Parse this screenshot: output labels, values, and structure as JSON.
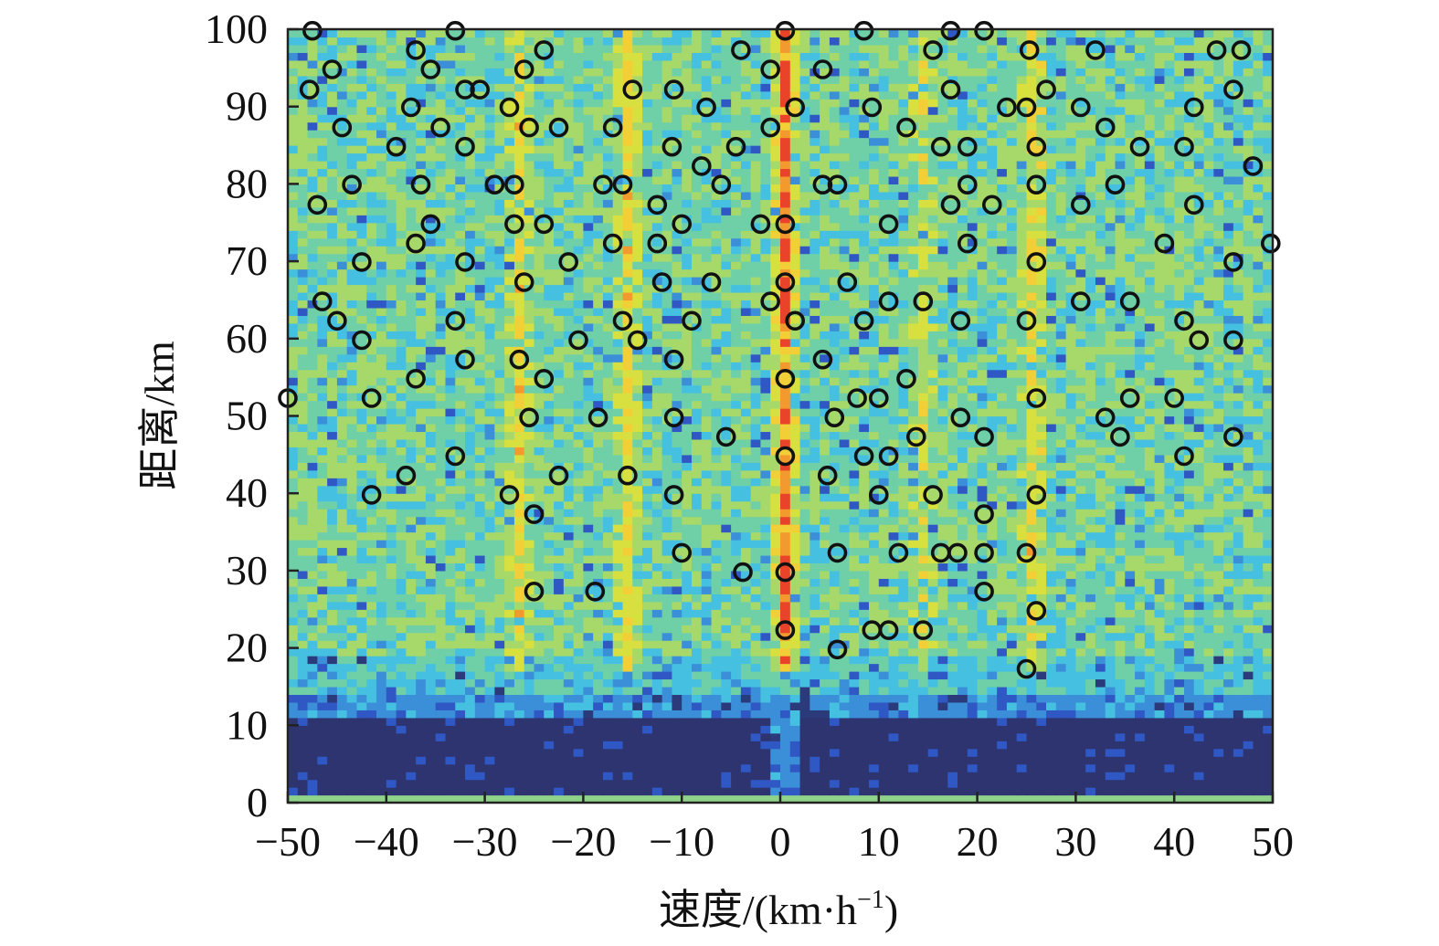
{
  "chart_data": {
    "type": "heatmap",
    "title": "",
    "xlabel": "速度/(km·h",
    "xlabel_sup": "−1",
    "xlabel_close": ")",
    "ylabel": "距离/km",
    "xlim": [
      -50,
      50
    ],
    "ylim": [
      0,
      100
    ],
    "x_ticks": [
      -50,
      -40,
      -30,
      -20,
      -10,
      0,
      10,
      20,
      30,
      40,
      50
    ],
    "x_tick_labels": [
      "−50",
      "−40",
      "−30",
      "−20",
      "−10",
      "0",
      "10",
      "20",
      "30",
      "40",
      "50"
    ],
    "y_ticks": [
      0,
      10,
      20,
      30,
      40,
      50,
      60,
      70,
      80,
      90,
      100
    ],
    "y_tick_labels": [
      "0",
      "10",
      "20",
      "30",
      "40",
      "50",
      "60",
      "70",
      "80",
      "90",
      "100"
    ],
    "grid": false,
    "colormap": [
      "#2b3a7a",
      "#2f58c4",
      "#3b8fd8",
      "#45c0e0",
      "#6fd0a8",
      "#a6d86a",
      "#d8e040",
      "#f2cf36",
      "#f39a2e",
      "#e9432a"
    ],
    "background_band": {
      "range_km": [
        1,
        11
      ],
      "color": "#2e3470"
    },
    "bright_ridges": [
      {
        "velocity": 0.5,
        "intensity": "high"
      },
      {
        "velocity": -26.5,
        "intensity": "medium"
      },
      {
        "velocity": 25.8,
        "intensity": "medium"
      },
      {
        "velocity": -15.5,
        "intensity": "medium"
      },
      {
        "velocity": 14.5,
        "intensity": "low"
      }
    ],
    "detections": [
      [
        -47.5,
        99.8
      ],
      [
        -33.0,
        99.8
      ],
      [
        0.5,
        99.8
      ],
      [
        8.5,
        99.8
      ],
      [
        17.3,
        99.8
      ],
      [
        20.7,
        99.8
      ],
      [
        -37.0,
        97.3
      ],
      [
        -24.0,
        97.3
      ],
      [
        -4.0,
        97.3
      ],
      [
        15.5,
        97.3
      ],
      [
        25.3,
        97.3
      ],
      [
        32.0,
        97.3
      ],
      [
        44.3,
        97.3
      ],
      [
        46.8,
        97.3
      ],
      [
        -45.5,
        94.8
      ],
      [
        -35.5,
        94.8
      ],
      [
        -26.0,
        94.8
      ],
      [
        -1.0,
        94.8
      ],
      [
        4.3,
        94.8
      ],
      [
        -47.8,
        92.2
      ],
      [
        -32.0,
        92.2
      ],
      [
        -30.5,
        92.2
      ],
      [
        -15.0,
        92.2
      ],
      [
        -10.8,
        92.2
      ],
      [
        17.3,
        92.2
      ],
      [
        27.0,
        92.2
      ],
      [
        46.0,
        92.2
      ],
      [
        -37.5,
        89.9
      ],
      [
        -27.5,
        89.9
      ],
      [
        1.5,
        89.9
      ],
      [
        -7.5,
        89.9
      ],
      [
        9.3,
        89.9
      ],
      [
        23.0,
        89.9
      ],
      [
        25.0,
        89.9
      ],
      [
        30.5,
        89.9
      ],
      [
        42.0,
        89.9
      ],
      [
        -44.5,
        87.3
      ],
      [
        -34.5,
        87.3
      ],
      [
        -25.5,
        87.3
      ],
      [
        -22.5,
        87.3
      ],
      [
        -17.0,
        87.3
      ],
      [
        -1.0,
        87.3
      ],
      [
        12.8,
        87.3
      ],
      [
        33.0,
        87.3
      ],
      [
        -39.0,
        84.8
      ],
      [
        -32.0,
        84.8
      ],
      [
        -11.0,
        84.8
      ],
      [
        -4.5,
        84.8
      ],
      [
        16.3,
        84.8
      ],
      [
        19.0,
        84.8
      ],
      [
        26.0,
        84.8
      ],
      [
        36.5,
        84.8
      ],
      [
        41.0,
        84.8
      ],
      [
        -8.0,
        82.3
      ],
      [
        48.0,
        82.3
      ],
      [
        -43.5,
        79.9
      ],
      [
        -36.5,
        79.9
      ],
      [
        -29.0,
        79.9
      ],
      [
        -27.0,
        79.9
      ],
      [
        -18.0,
        79.9
      ],
      [
        -16.0,
        79.9
      ],
      [
        -6.0,
        79.9
      ],
      [
        4.3,
        79.9
      ],
      [
        5.8,
        79.9
      ],
      [
        19.0,
        79.9
      ],
      [
        26.0,
        79.9
      ],
      [
        34.0,
        79.9
      ],
      [
        -47.0,
        77.3
      ],
      [
        -12.5,
        77.3
      ],
      [
        17.3,
        77.3
      ],
      [
        21.5,
        77.3
      ],
      [
        30.5,
        77.3
      ],
      [
        42.0,
        77.3
      ],
      [
        -35.5,
        74.8
      ],
      [
        -27.0,
        74.8
      ],
      [
        -24.0,
        74.8
      ],
      [
        -10.0,
        74.8
      ],
      [
        -2.0,
        74.8
      ],
      [
        0.5,
        74.8
      ],
      [
        11.0,
        74.8
      ],
      [
        -37.0,
        72.3
      ],
      [
        -17.0,
        72.3
      ],
      [
        -12.5,
        72.3
      ],
      [
        19.0,
        72.3
      ],
      [
        39.0,
        72.3
      ],
      [
        49.8,
        72.3
      ],
      [
        -42.5,
        69.9
      ],
      [
        -32.0,
        69.9
      ],
      [
        -21.5,
        69.9
      ],
      [
        26.0,
        69.9
      ],
      [
        46.0,
        69.9
      ],
      [
        -26.0,
        67.3
      ],
      [
        -12.0,
        67.3
      ],
      [
        -7.0,
        67.3
      ],
      [
        0.5,
        67.3
      ],
      [
        6.8,
        67.3
      ],
      [
        -46.5,
        64.8
      ],
      [
        -1.0,
        64.8
      ],
      [
        11.0,
        64.8
      ],
      [
        14.5,
        64.8
      ],
      [
        30.5,
        64.8
      ],
      [
        35.5,
        64.8
      ],
      [
        -45.0,
        62.3
      ],
      [
        -33.0,
        62.3
      ],
      [
        -16.0,
        62.3
      ],
      [
        -9.0,
        62.3
      ],
      [
        1.5,
        62.3
      ],
      [
        8.5,
        62.3
      ],
      [
        18.3,
        62.3
      ],
      [
        25.0,
        62.3
      ],
      [
        41.0,
        62.3
      ],
      [
        -42.5,
        59.8
      ],
      [
        -20.5,
        59.8
      ],
      [
        -14.5,
        59.8
      ],
      [
        42.5,
        59.8
      ],
      [
        46.0,
        59.8
      ],
      [
        -32.0,
        57.3
      ],
      [
        -26.5,
        57.3
      ],
      [
        -10.8,
        57.3
      ],
      [
        4.3,
        57.3
      ],
      [
        -37.0,
        54.8
      ],
      [
        -24.0,
        54.8
      ],
      [
        0.5,
        54.8
      ],
      [
        12.8,
        54.8
      ],
      [
        -50.0,
        52.3
      ],
      [
        -41.5,
        52.3
      ],
      [
        7.8,
        52.3
      ],
      [
        10.0,
        52.3
      ],
      [
        26.0,
        52.3
      ],
      [
        35.5,
        52.3
      ],
      [
        40.0,
        52.3
      ],
      [
        -25.5,
        49.8
      ],
      [
        -18.5,
        49.8
      ],
      [
        -10.8,
        49.8
      ],
      [
        5.5,
        49.8
      ],
      [
        18.3,
        49.8
      ],
      [
        33.0,
        49.8
      ],
      [
        -5.5,
        47.3
      ],
      [
        13.8,
        47.3
      ],
      [
        20.7,
        47.3
      ],
      [
        34.5,
        47.3
      ],
      [
        46.0,
        47.3
      ],
      [
        -33.0,
        44.8
      ],
      [
        0.5,
        44.8
      ],
      [
        8.5,
        44.8
      ],
      [
        11.0,
        44.8
      ],
      [
        41.0,
        44.8
      ],
      [
        -38.0,
        42.3
      ],
      [
        -22.5,
        42.3
      ],
      [
        -15.5,
        42.3
      ],
      [
        4.8,
        42.3
      ],
      [
        -41.5,
        39.8
      ],
      [
        -27.5,
        39.8
      ],
      [
        -10.8,
        39.8
      ],
      [
        10.0,
        39.8
      ],
      [
        15.5,
        39.8
      ],
      [
        26.0,
        39.8
      ],
      [
        -25.0,
        37.3
      ],
      [
        20.7,
        37.3
      ],
      [
        -10.0,
        32.3
      ],
      [
        5.8,
        32.3
      ],
      [
        12.0,
        32.3
      ],
      [
        16.3,
        32.3
      ],
      [
        18.0,
        32.3
      ],
      [
        20.7,
        32.3
      ],
      [
        25.0,
        32.3
      ],
      [
        -3.8,
        29.8
      ],
      [
        0.5,
        29.8
      ],
      [
        -25.0,
        27.3
      ],
      [
        -18.8,
        27.3
      ],
      [
        20.7,
        27.3
      ],
      [
        26.0,
        24.8
      ],
      [
        0.5,
        22.3
      ],
      [
        9.3,
        22.3
      ],
      [
        11.0,
        22.3
      ],
      [
        14.5,
        22.3
      ],
      [
        5.8,
        19.8
      ],
      [
        25.0,
        17.3
      ]
    ]
  }
}
